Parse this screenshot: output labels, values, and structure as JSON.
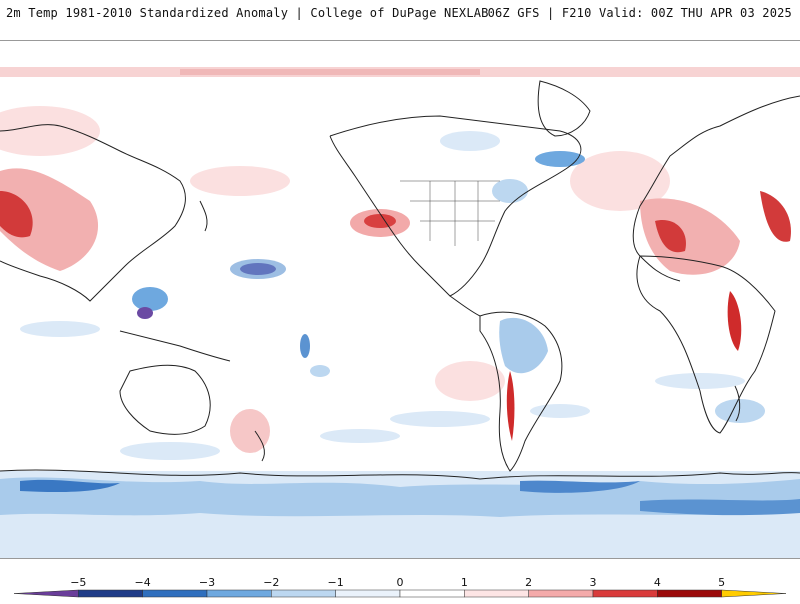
{
  "header": {
    "title_left": "2m Temp 1981-2010 Standardized Anomaly | College of DuPage NEXLAB",
    "title_right": "06Z GFS | F210 Valid: 00Z THU APR 03 2025"
  },
  "colorbar": {
    "ticks": [
      "−5",
      "−4",
      "−3",
      "−2",
      "−1",
      "0",
      "1",
      "2",
      "3",
      "4",
      "5"
    ],
    "colors": [
      "#6a3d9a",
      "#1f3c88",
      "#2f6fbe",
      "#6ea8df",
      "#bcd7f0",
      "#eaf2fb",
      "#ffffff",
      "#fde5e5",
      "#f4aaaa",
      "#d93b3b",
      "#9b0a0a",
      "#ffcc00"
    ]
  },
  "map": {
    "background": "#ffffff",
    "coastline_color": "#222222"
  }
}
